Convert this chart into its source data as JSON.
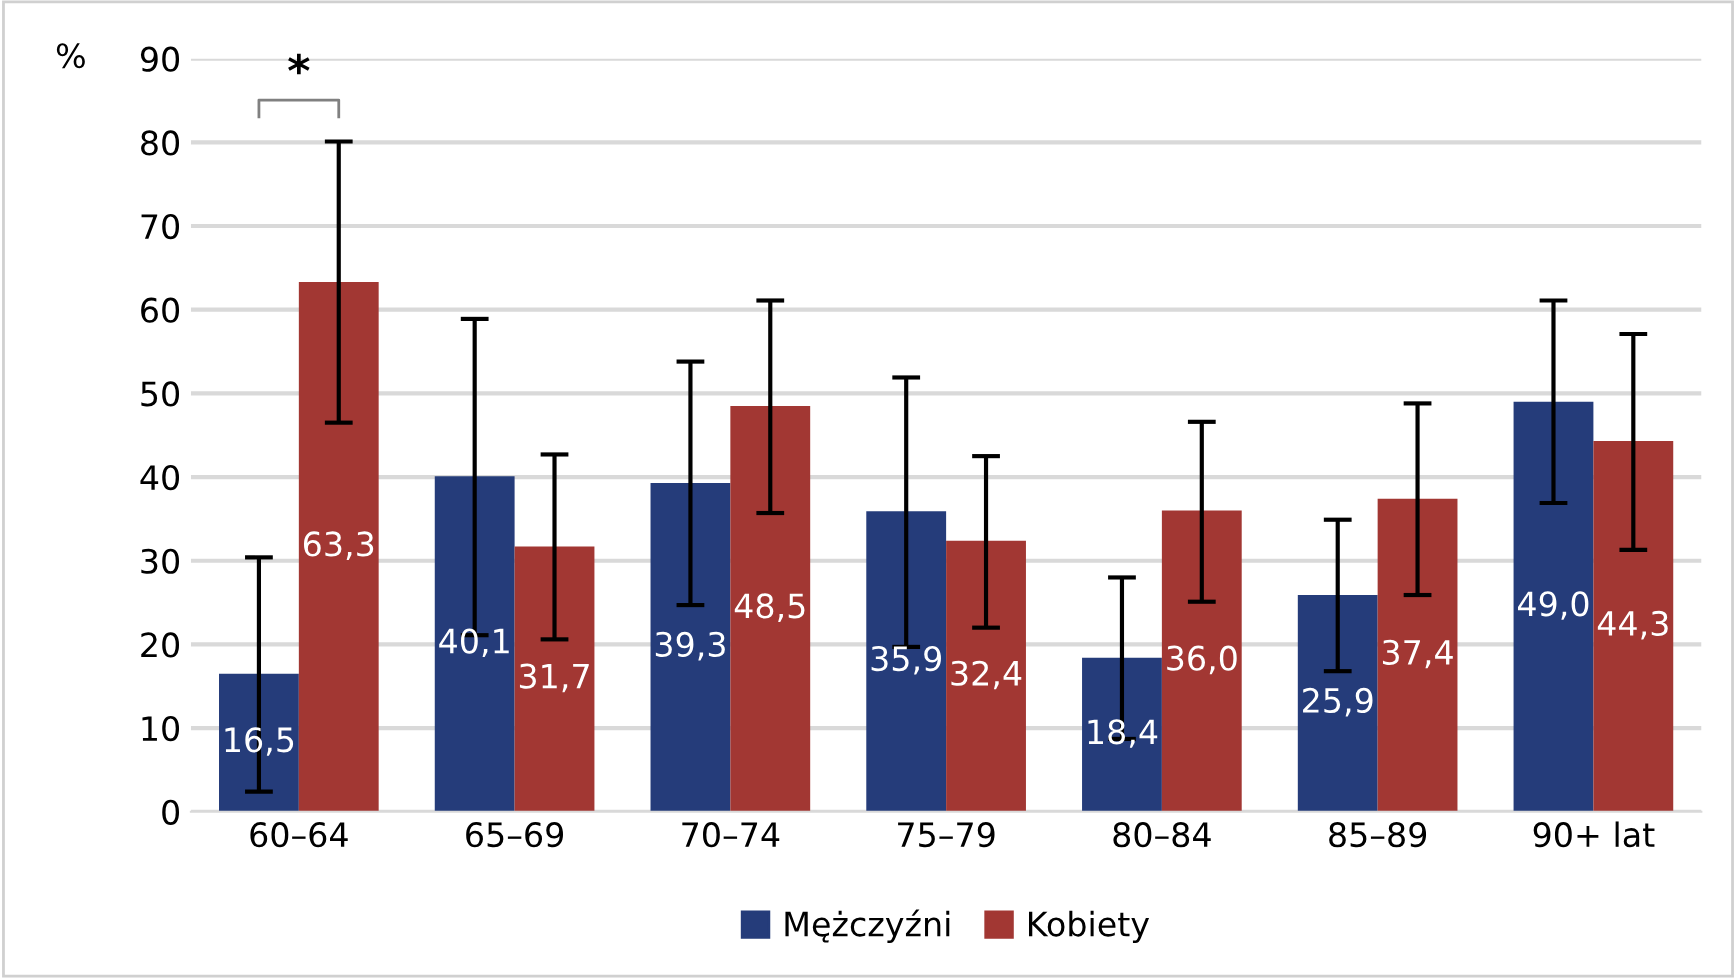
{
  "chart_data": {
    "type": "bar",
    "ylabel": "%",
    "categories": [
      "60–64",
      "65–69",
      "70–74",
      "75–79",
      "80–84",
      "85–89",
      "90+ lat"
    ],
    "series": [
      {
        "name": "Mężczyźni",
        "color": "#253c7a",
        "values": [
          16.5,
          40.1,
          39.3,
          35.9,
          18.4,
          25.9,
          49.0
        ],
        "value_labels": [
          "16,5",
          "40,1",
          "39,3",
          "35,9",
          "18,4",
          "25,9",
          "49,0"
        ],
        "errors": [
          [
            2.4,
            30.4
          ],
          [
            21.1,
            58.9
          ],
          [
            24.7,
            53.8
          ],
          [
            19.7,
            51.9
          ],
          [
            8.7,
            28.0
          ],
          [
            16.8,
            34.9
          ],
          [
            36.9,
            61.1
          ]
        ]
      },
      {
        "name": "Kobiety",
        "color": "#a23733",
        "values": [
          63.3,
          31.7,
          48.5,
          32.4,
          36.0,
          37.4,
          44.3
        ],
        "value_labels": [
          "63,3",
          "31,7",
          "48,5",
          "32,4",
          "36,0",
          "37,4",
          "44,3"
        ],
        "errors": [
          [
            46.5,
            80.1
          ],
          [
            20.6,
            42.7
          ],
          [
            35.7,
            61.1
          ],
          [
            22.0,
            42.5
          ],
          [
            25.1,
            46.6
          ],
          [
            25.9,
            48.8
          ],
          [
            31.3,
            57.1
          ]
        ]
      }
    ],
    "ylim": [
      0,
      90
    ],
    "yticks": [
      0,
      10,
      20,
      30,
      40,
      50,
      60,
      70,
      80,
      90
    ],
    "grid": "y",
    "legend": "bottom",
    "annotations": [
      "*"
    ]
  }
}
